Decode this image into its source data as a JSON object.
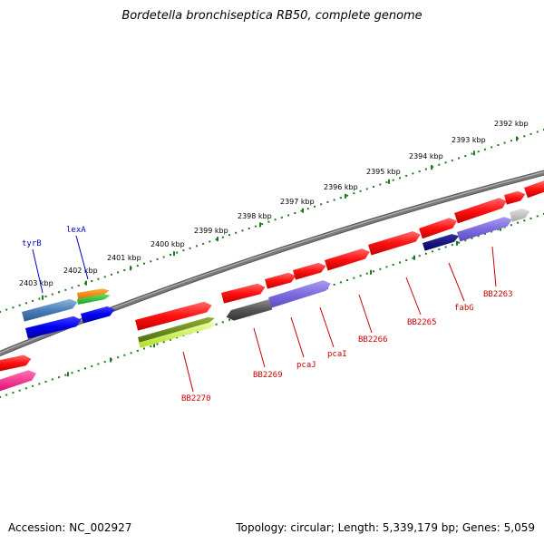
{
  "title": "Bordetella bronchiseptica RB50, complete genome",
  "footer": {
    "accession": "Accession: NC_002927",
    "summary": "Topology: circular; Length: 5,339,179 bp; Genes: 5,059"
  },
  "colors": {
    "backbone": "#7a7a7a",
    "scale_dots": "#1f7a1f",
    "label_red": "#cc0000",
    "label_blue": "#0000cc"
  },
  "ticks": [
    {
      "label": "2392 kbp"
    },
    {
      "label": "2393 kbp"
    },
    {
      "label": "2394 kbp"
    },
    {
      "label": "2395 kbp"
    },
    {
      "label": "2396 kbp"
    },
    {
      "label": "2397 kbp"
    },
    {
      "label": "2398 kbp"
    },
    {
      "label": "2399 kbp"
    },
    {
      "label": "2400 kbp"
    },
    {
      "label": "2401 kbp"
    },
    {
      "label": "2402 kbp"
    },
    {
      "label": "2403 kbp"
    }
  ],
  "gene_labels": [
    {
      "name": "tyrB",
      "color": "#0000cc"
    },
    {
      "name": "lexA",
      "color": "#0000cc"
    },
    {
      "name": "BB2270",
      "color": "#cc0000"
    },
    {
      "name": "BB2269",
      "color": "#cc0000"
    },
    {
      "name": "pcaJ",
      "color": "#cc0000"
    },
    {
      "name": "pcaI",
      "color": "#cc0000"
    },
    {
      "name": "BB2266",
      "color": "#cc0000"
    },
    {
      "name": "BB2265",
      "color": "#cc0000"
    },
    {
      "name": "fabG",
      "color": "#cc0000"
    },
    {
      "name": "BB2263",
      "color": "#cc0000"
    }
  ]
}
